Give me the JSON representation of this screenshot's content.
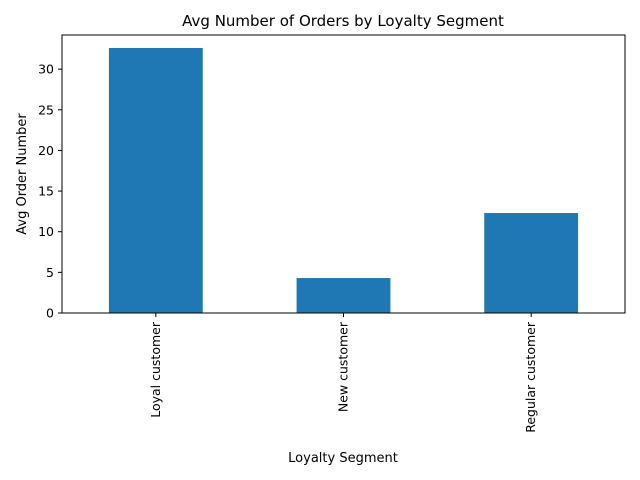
{
  "chart_data": {
    "type": "bar",
    "title": "Avg Number of Orders by Loyalty Segment",
    "xlabel": "Loyalty Segment",
    "ylabel": "Avg Order Number",
    "categories": [
      "Loyal customer",
      "New customer",
      "Regular customer"
    ],
    "values": [
      32.6,
      4.3,
      12.3
    ],
    "ylim": [
      0,
      34.2
    ],
    "yticks": [
      0,
      5,
      10,
      15,
      20,
      25,
      30
    ],
    "bar_color": "#1f77b4",
    "grid": false,
    "legend": "none"
  }
}
